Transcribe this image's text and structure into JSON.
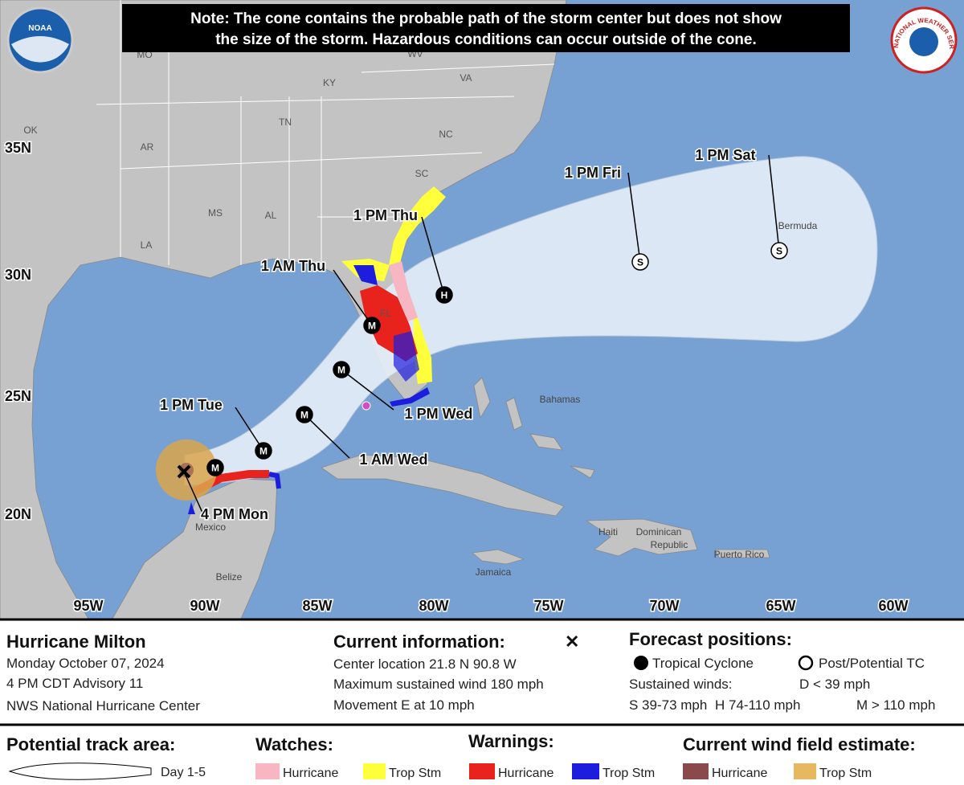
{
  "note": [
    "Note: The cone contains the probable path of the storm center but does not show",
    "the size of the storm. Hazardous conditions can occur outside of the cone."
  ],
  "logos": {
    "noaa": "NOAA",
    "nws": "NATIONAL WEATHER SERVICE"
  },
  "map": {
    "latitude_labels": [
      "35N",
      "30N",
      "25N",
      "20N"
    ],
    "longitude_labels": [
      "95W",
      "90W",
      "85W",
      "80W",
      "75W",
      "70W",
      "65W",
      "60W"
    ],
    "state_labels": [
      "MO",
      "WV",
      "KY",
      "VA",
      "OK",
      "TN",
      "NC",
      "AR",
      "SC",
      "MS",
      "AL",
      "LA",
      "FL"
    ],
    "place_labels": [
      "Bermuda",
      "Bahamas",
      "Mexico",
      "Belize",
      "Jamaica",
      "Haiti",
      "Dominican",
      "Republic",
      "Puerto Rico"
    ],
    "current_position": {
      "time": "4 PM Mon"
    },
    "forecast_points": [
      {
        "code": "M"
      },
      {
        "time": "1 PM Tue",
        "code": "M"
      },
      {
        "time": "1 AM Wed",
        "code": "M"
      },
      {
        "time": "1 PM Wed",
        "code": "M"
      },
      {
        "time": "1 AM Thu",
        "code": "M"
      },
      {
        "time": "1 PM Thu",
        "code": "H"
      },
      {
        "time": "1 PM Fri",
        "code": "S"
      },
      {
        "time": "1 PM Sat",
        "code": "S"
      }
    ]
  },
  "legend": {
    "storm": {
      "name": "Hurricane Milton",
      "date": "Monday October 07, 2024",
      "advisory": "4 PM CDT Advisory 11",
      "agency": "NWS National Hurricane Center"
    },
    "current": {
      "title": "Current information:",
      "symbol": "✕",
      "lines": [
        "Center location 21.8 N 90.8 W",
        "Maximum sustained wind 180 mph",
        "Movement E at 10 mph"
      ]
    },
    "forecast": {
      "title": "Forecast positions:",
      "tropical": "Tropical Cyclone",
      "post": "Post/Potential TC",
      "winds_title": "Sustained winds:",
      "d": "D < 39 mph",
      "s": "S 39-73 mph",
      "h": "H 74-110 mph",
      "m": "M > 110 mph"
    },
    "track": {
      "title": "Potential track area:",
      "label": "Day 1-5"
    },
    "watches": {
      "title": "Watches:",
      "hurricane": "Hurricane",
      "trop_stm": "Trop Stm"
    },
    "warnings": {
      "title": "Warnings:",
      "hurricane": "Hurricane",
      "trop_stm": "Trop Stm"
    },
    "wind_field": {
      "title": "Current wind field estimate:",
      "hurricane": "Hurricane",
      "trop_stm": "Trop Stm"
    }
  }
}
